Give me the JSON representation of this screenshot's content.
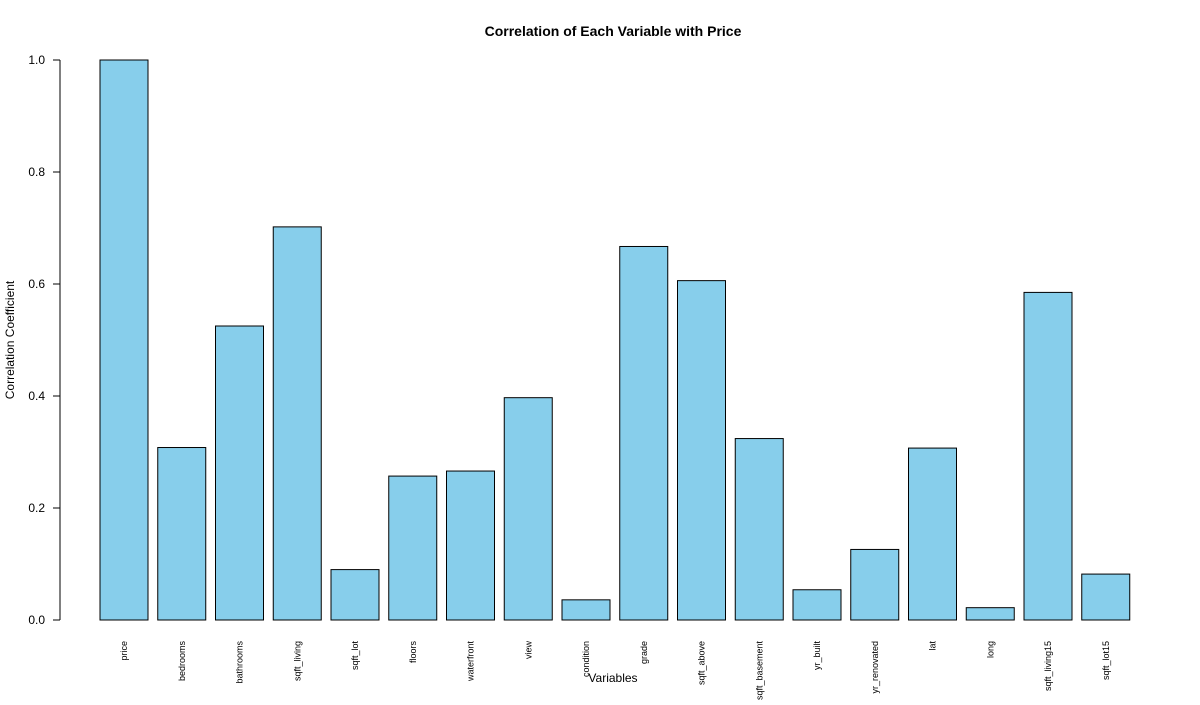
{
  "chart_data": {
    "type": "bar",
    "title": "Correlation of Each Variable with Price",
    "xlabel": "Variables",
    "ylabel": "Correlation Coefficient",
    "categories": [
      "price",
      "bedrooms",
      "bathrooms",
      "sqft_living",
      "sqft_lot",
      "floors",
      "waterfront",
      "view",
      "condition",
      "grade",
      "sqft_above",
      "sqft_basement",
      "yr_built",
      "yr_renovated",
      "lat",
      "long",
      "sqft_living15",
      "sqft_lot15"
    ],
    "values": [
      1.0,
      0.308,
      0.525,
      0.702,
      0.09,
      0.257,
      0.266,
      0.397,
      0.036,
      0.667,
      0.606,
      0.324,
      0.054,
      0.126,
      0.307,
      0.022,
      0.585,
      0.082
    ],
    "ylim": [
      0,
      1.0
    ],
    "yticks": [
      "0.0",
      "0.2",
      "0.4",
      "0.6",
      "0.8",
      "1.0"
    ],
    "bar_color": "#87CEEB",
    "bar_edge_color": "#000000",
    "grid": false,
    "legend": "none"
  }
}
